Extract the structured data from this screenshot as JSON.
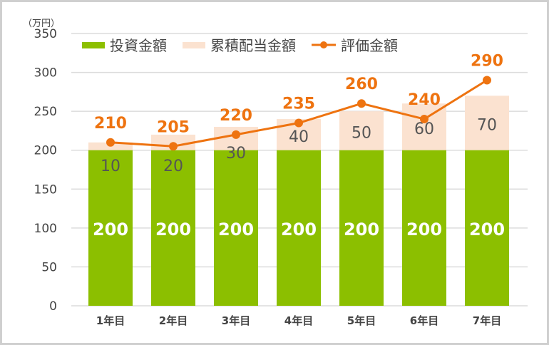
{
  "chart_data": {
    "type": "bar",
    "stacked": true,
    "unit_label": "（万円）",
    "categories": [
      "1年目",
      "2年目",
      "3年目",
      "4年目",
      "5年目",
      "6年目",
      "7年目"
    ],
    "series": [
      {
        "name": "投資金額",
        "type": "bar",
        "color": "#8cbf00",
        "values": [
          200,
          200,
          200,
          200,
          200,
          200,
          200
        ]
      },
      {
        "name": "累積配当金額",
        "type": "bar",
        "color": "#fbe2d0",
        "values": [
          10,
          20,
          30,
          40,
          50,
          60,
          70
        ]
      },
      {
        "name": "評価金額",
        "type": "line",
        "color": "#ee7310",
        "values": [
          210,
          205,
          220,
          235,
          260,
          240,
          290
        ]
      }
    ],
    "ylim": [
      0,
      350
    ],
    "yticks": [
      0,
      50,
      100,
      150,
      200,
      250,
      300,
      350
    ],
    "grid": true,
    "legend": "top"
  }
}
